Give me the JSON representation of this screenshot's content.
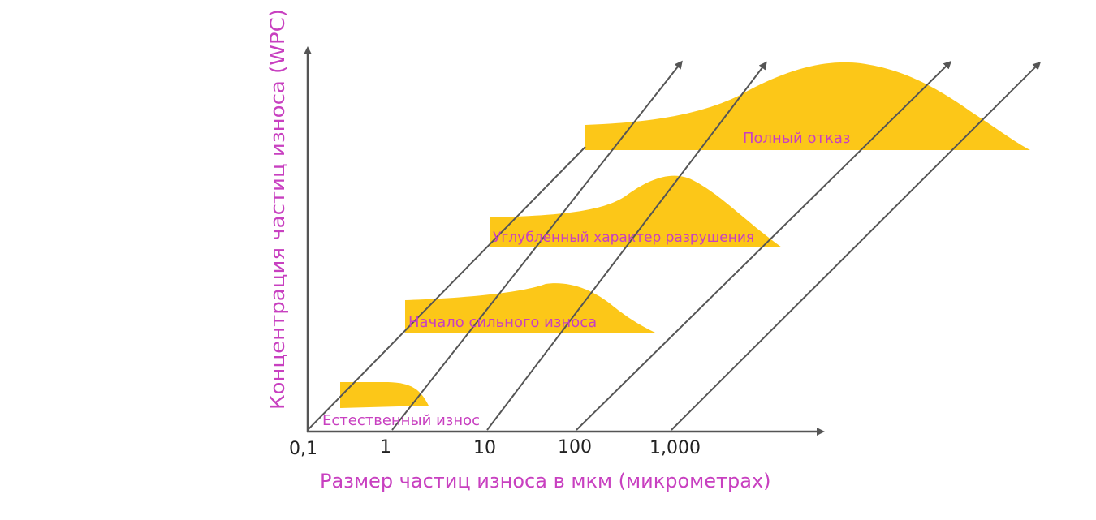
{
  "colors": {
    "accent": "#c840c0",
    "band_fill": "#fcc718",
    "axis": "#555555",
    "tick_text": "#222222"
  },
  "axes": {
    "x_title": "Размер частиц износа в мкм (микрометрах)",
    "y_title": "Концентрация частиц износа (WPC)",
    "x_ticks": [
      "0,1",
      "1",
      "10",
      "100",
      "1,000"
    ]
  },
  "stages": [
    {
      "label": "Естественный износ"
    },
    {
      "label": "Начало сильного износа"
    },
    {
      "label": "Углубленный характер разрушения"
    },
    {
      "label": "Полный отказ"
    }
  ]
}
